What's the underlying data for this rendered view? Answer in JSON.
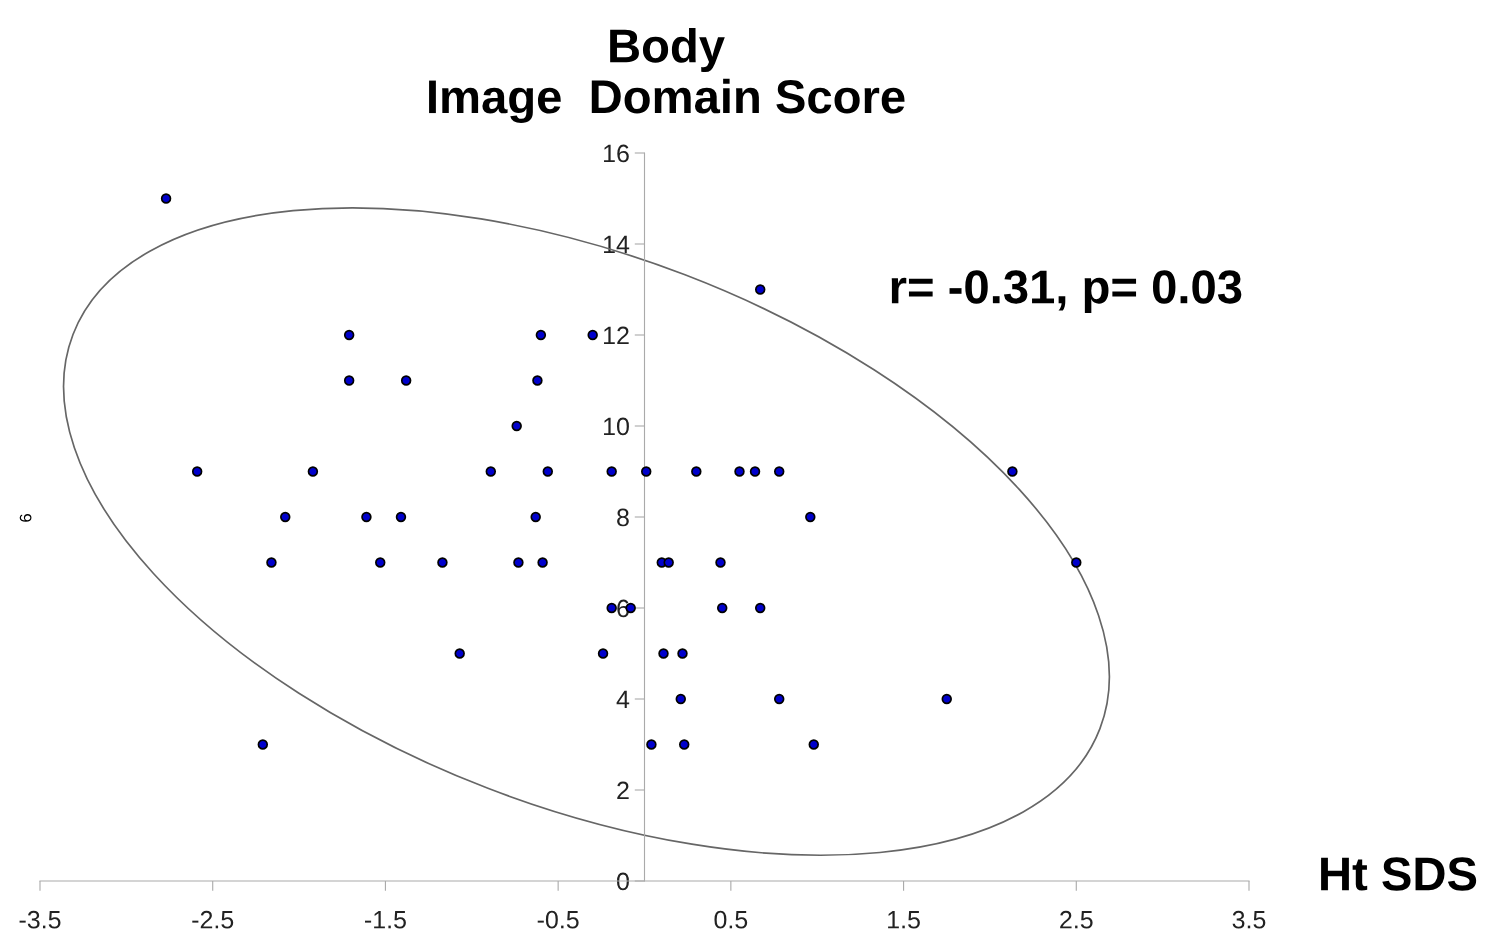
{
  "chart_data": {
    "type": "scatter",
    "title": "Body\nImage  Domain Score",
    "xlabel": "Ht SDS",
    "ylabel": "6",
    "annotations": [
      "r= -0.31, p= 0.03"
    ],
    "marker": "circle",
    "grid": false,
    "xlim": [
      -3.5,
      3.5
    ],
    "ylim": [
      0,
      16
    ],
    "xticks": [
      -3.5,
      -2.5,
      -1.5,
      -0.5,
      0.5,
      1.5,
      2.5,
      3.5
    ],
    "yticks": [
      0,
      2,
      4,
      6,
      8,
      10,
      12,
      14,
      16
    ],
    "series": [
      {
        "color": "#0000cc",
        "x": [
          -2.77,
          0.67,
          -1.71,
          -0.6,
          -0.3,
          -1.71,
          -1.38,
          -0.62,
          -0.74,
          -2.59,
          -1.92,
          -0.89,
          -0.56,
          -0.19,
          0.01,
          0.3,
          0.55,
          0.64,
          0.78,
          2.13,
          -2.08,
          -1.61,
          -1.41,
          -0.63,
          0.96,
          -2.16,
          -1.53,
          -1.17,
          -0.73,
          -0.59,
          0.1,
          0.14,
          0.44,
          2.5,
          -0.19,
          -0.08,
          0.45,
          0.67,
          -1.07,
          -0.24,
          0.11,
          0.22,
          0.21,
          0.78,
          1.75,
          -2.21,
          0.04,
          0.23,
          0.98
        ],
        "values": [
          15,
          13,
          12,
          12,
          12,
          11,
          11,
          11,
          10,
          9,
          9,
          9,
          9,
          9,
          9,
          9,
          9,
          9,
          9,
          9,
          8,
          8,
          8,
          8,
          8,
          7,
          7,
          7,
          7,
          7,
          7,
          7,
          7,
          7,
          6,
          6,
          6,
          6,
          5,
          5,
          5,
          5,
          4,
          4,
          4,
          3,
          3,
          3,
          3
        ]
      }
    ]
  }
}
